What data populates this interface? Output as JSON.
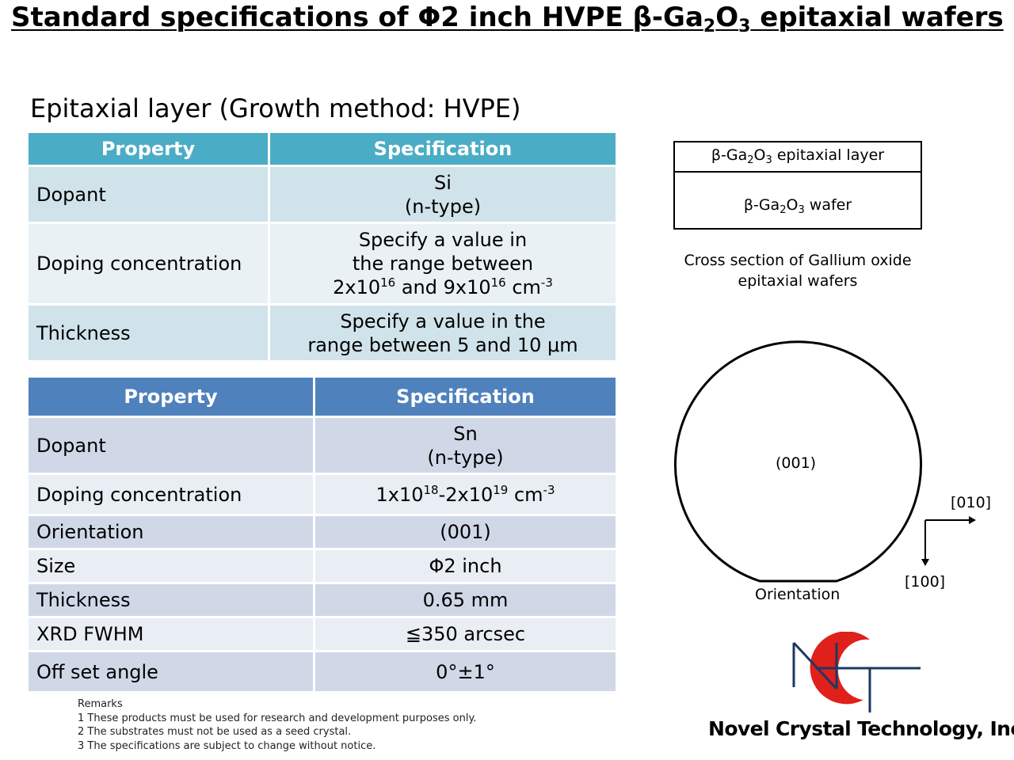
{
  "title": {
    "part1": "Standard specifications of Φ2 inch HVPE β-Ga",
    "sub1": "2",
    "part2": "O",
    "sub2": "3",
    "part3": " epitaxial wafers"
  },
  "epitaxial_heading": "Epitaxial layer (Growth method: HVPE)",
  "epi_table": {
    "header": {
      "property": "Property",
      "specification": "Specification"
    },
    "dopant": {
      "label": "Dopant",
      "line1": "Si",
      "line2": "(n-type)"
    },
    "doping": {
      "label": "Doping concentration",
      "line1": "Specify a value in",
      "line2": "the range between",
      "a": "2x10",
      "a_exp": "16",
      "and": " and 9x10",
      "b_exp": "16",
      "unit": " cm",
      "unit_exp": "-3"
    },
    "thickness": {
      "label": "Thickness",
      "line1": "Specify a value in the",
      "line2": "range between 5 and 10 μm"
    }
  },
  "sub_table": {
    "header": {
      "property": "Property",
      "specification": "Specification"
    },
    "dopant": {
      "label": "Dopant",
      "line1": "Sn",
      "line2": "(n-type)"
    },
    "doping": {
      "label": "Doping concentration",
      "a": "1x10",
      "a_exp": "18",
      "b": "-2x10",
      "b_exp": "19",
      "unit": " cm",
      "unit_exp": "-3"
    },
    "orientation": {
      "label": "Orientation",
      "value": "(001)"
    },
    "size": {
      "label": "Size",
      "value": "Φ2 inch"
    },
    "thickness": {
      "label": "Thickness",
      "value": "0.65 mm"
    },
    "xrd": {
      "label": "XRD FWHM",
      "value": "≦350 arcsec"
    },
    "offset": {
      "label": "Off set angle",
      "value": "0°±1°"
    }
  },
  "cross_section": {
    "layer": {
      "a": "β-Ga",
      "s1": "2",
      "b": "O",
      "s2": "3",
      "c": " epitaxial layer"
    },
    "wafer": {
      "a": "β-Ga",
      "s1": "2",
      "b": "O",
      "s2": "3",
      "c": " wafer"
    },
    "caption_line1": "Cross section of Gallium oxide",
    "caption_line2": "epitaxial wafers"
  },
  "wafer_diagram": {
    "face": "(001)",
    "dir_x": "[010]",
    "dir_y": "[100]",
    "flat_label": "Orientation"
  },
  "remarks": {
    "heading": "Remarks",
    "items": [
      "1 These products must be used for research and development purposes only.",
      "2 The substrates must not be used as a seed crystal.",
      "3 The specifications are subject to change without notice."
    ]
  },
  "company": "Novel Crystal Technology, Inc.",
  "colors": {
    "epi_header": "#4bacc6",
    "sub_header": "#4f81bd",
    "logo_red": "#e0201a",
    "logo_navy": "#1f3763"
  }
}
